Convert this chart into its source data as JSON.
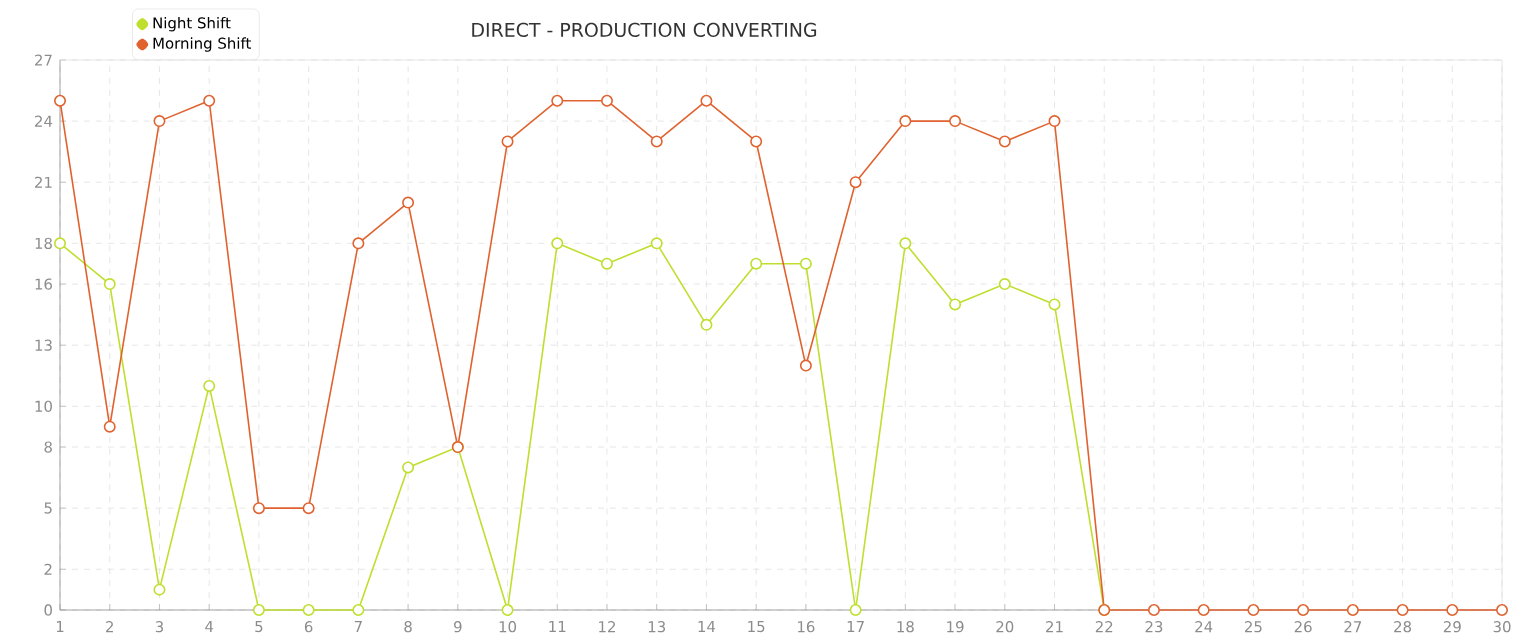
{
  "chart_data": {
    "type": "line",
    "title": "DIRECT - PRODUCTION CONVERTING",
    "x": [
      1,
      2,
      3,
      4,
      5,
      6,
      7,
      8,
      9,
      10,
      11,
      12,
      13,
      14,
      15,
      16,
      17,
      18,
      19,
      20,
      21,
      22,
      23,
      24,
      25,
      26,
      27,
      28,
      29,
      30
    ],
    "series": [
      {
        "name": "Night Shift",
        "color": "#bfdf2f",
        "values": [
          18,
          16,
          1,
          11,
          0,
          0,
          0,
          7,
          8,
          0,
          18,
          17,
          18,
          14,
          17,
          17,
          0,
          18,
          15,
          16,
          15,
          0,
          null,
          null,
          null,
          null,
          null,
          null,
          null,
          null
        ]
      },
      {
        "name": "Morning Shift",
        "color": "#e0622f",
        "values": [
          25,
          9,
          24,
          25,
          5,
          5,
          18,
          20,
          8,
          23,
          25,
          25,
          23,
          25,
          23,
          12,
          21,
          24,
          24,
          23,
          24,
          0,
          0,
          0,
          0,
          0,
          0,
          0,
          0,
          0
        ]
      }
    ],
    "xlim": [
      1,
      30
    ],
    "ylim": [
      0,
      27
    ],
    "xticks": [
      1,
      2,
      3,
      4,
      5,
      6,
      7,
      8,
      9,
      10,
      11,
      12,
      13,
      14,
      15,
      16,
      17,
      18,
      19,
      20,
      21,
      22,
      23,
      24,
      25,
      26,
      27,
      28,
      29,
      30
    ],
    "yticks": [
      0,
      2,
      5,
      8,
      10,
      13,
      16,
      18,
      21,
      24,
      27
    ],
    "grid": true,
    "legend": "top left",
    "marker": "circle",
    "line_style": "solid"
  }
}
